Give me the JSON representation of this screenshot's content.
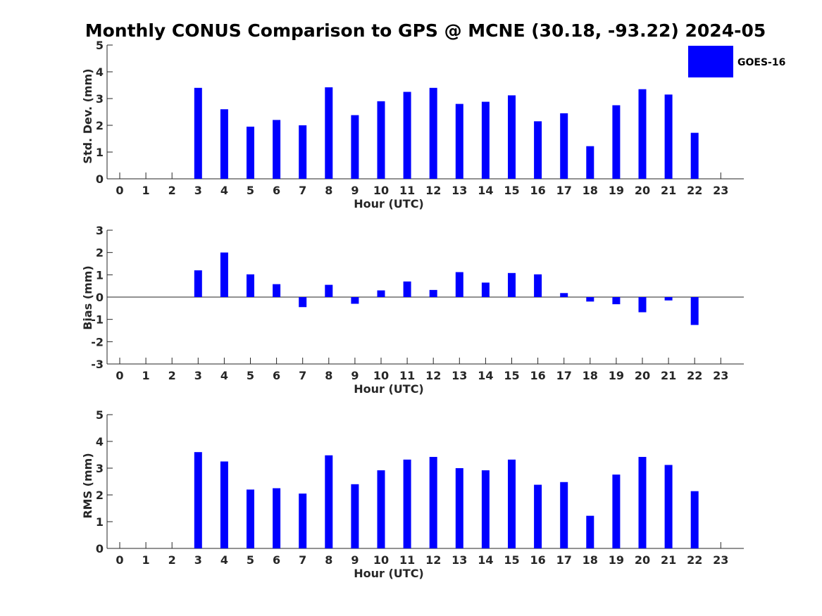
{
  "chart_data": {
    "title": "Monthly CONUS Comparison to GPS @ MCNE (30.18, -93.22) 2024-05",
    "legend": {
      "label": "GOES-16",
      "color": "#0000ff",
      "placement": "top-right"
    },
    "panels": [
      {
        "type": "bar",
        "ylabel": "Std. Dev. (mm)",
        "xlabel": "Hour (UTC)",
        "ylim": [
          0,
          5
        ],
        "yticks": [
          "0",
          "1",
          "2",
          "3",
          "4",
          "5"
        ],
        "x": [
          0,
          1,
          2,
          3,
          4,
          5,
          6,
          7,
          8,
          9,
          10,
          11,
          12,
          13,
          14,
          15,
          16,
          17,
          18,
          19,
          20,
          21,
          22,
          23
        ],
        "xtick_labels": [
          "0",
          "1",
          "2",
          "3",
          "4",
          "5",
          "6",
          "7",
          "8",
          "9",
          "10",
          "11",
          "12",
          "13",
          "14",
          "15",
          "16",
          "17",
          "18",
          "19",
          "20",
          "21",
          "22",
          "23"
        ],
        "values": [
          null,
          null,
          null,
          3.4,
          2.6,
          1.95,
          2.2,
          2.0,
          3.42,
          2.38,
          2.9,
          3.25,
          3.4,
          2.8,
          2.88,
          3.12,
          2.15,
          2.45,
          1.22,
          2.75,
          3.35,
          3.15,
          1.72,
          null
        ]
      },
      {
        "type": "bar",
        "ylabel": "Bias (mm)",
        "xlabel": "Hour (UTC)",
        "ylim": [
          -3,
          3
        ],
        "yticks": [
          "-3",
          "-2",
          "-1",
          "0",
          "1",
          "2",
          "3"
        ],
        "x": [
          0,
          1,
          2,
          3,
          4,
          5,
          6,
          7,
          8,
          9,
          10,
          11,
          12,
          13,
          14,
          15,
          16,
          17,
          18,
          19,
          20,
          21,
          22,
          23
        ],
        "xtick_labels": [
          "0",
          "1",
          "2",
          "3",
          "4",
          "5",
          "6",
          "7",
          "8",
          "9",
          "10",
          "11",
          "12",
          "13",
          "14",
          "15",
          "16",
          "17",
          "18",
          "19",
          "20",
          "21",
          "22",
          "23"
        ],
        "values": [
          null,
          null,
          null,
          1.2,
          2.0,
          1.02,
          0.58,
          -0.45,
          0.55,
          -0.3,
          0.3,
          0.7,
          0.32,
          1.12,
          0.65,
          1.08,
          1.02,
          0.18,
          -0.2,
          -0.32,
          -0.68,
          -0.15,
          -1.25,
          null
        ]
      },
      {
        "type": "bar",
        "ylabel": "RMS (mm)",
        "xlabel": "Hour (UTC)",
        "ylim": [
          0,
          5
        ],
        "yticks": [
          "0",
          "1",
          "2",
          "3",
          "4",
          "5"
        ],
        "x": [
          0,
          1,
          2,
          3,
          4,
          5,
          6,
          7,
          8,
          9,
          10,
          11,
          12,
          13,
          14,
          15,
          16,
          17,
          18,
          19,
          20,
          21,
          22,
          23
        ],
        "xtick_labels": [
          "0",
          "1",
          "2",
          "3",
          "4",
          "5",
          "6",
          "7",
          "8",
          "9",
          "10",
          "11",
          "12",
          "13",
          "14",
          "15",
          "16",
          "17",
          "18",
          "19",
          "20",
          "21",
          "22",
          "23"
        ],
        "values": [
          null,
          null,
          null,
          3.6,
          3.25,
          2.2,
          2.25,
          2.05,
          3.48,
          2.4,
          2.92,
          3.32,
          3.42,
          3.0,
          2.92,
          3.32,
          2.38,
          2.48,
          1.22,
          2.76,
          3.42,
          3.12,
          2.14,
          null
        ]
      }
    ]
  }
}
